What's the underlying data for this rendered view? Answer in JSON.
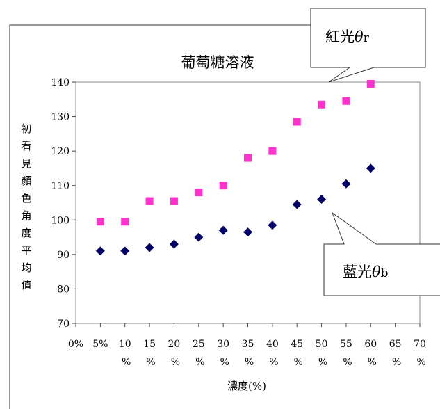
{
  "chart_data": {
    "type": "scatter",
    "title": "葡萄糖溶液",
    "xlabel": "濃度(%)",
    "ylabel": "初看見顏色角度平均值",
    "x_ticks": [
      "0%",
      "5%",
      "10 %",
      "15 %",
      "20 %",
      "25 %",
      "30 %",
      "35 %",
      "40 %",
      "45 %",
      "50 %",
      "55 %",
      "60 %",
      "65 %",
      "70 %"
    ],
    "x_values": [
      0,
      5,
      10,
      15,
      20,
      25,
      30,
      35,
      40,
      45,
      50,
      55,
      60,
      65,
      70
    ],
    "y_ticks": [
      70,
      80,
      90,
      100,
      110,
      120,
      130,
      140
    ],
    "ylim": [
      70,
      140
    ],
    "xlim": [
      0,
      70
    ],
    "grid": false,
    "series": [
      {
        "name": "紅光θr",
        "color": "#ff33cc",
        "marker": "square",
        "x": [
          5,
          10,
          15,
          20,
          25,
          30,
          35,
          40,
          45,
          50,
          55,
          60
        ],
        "values": [
          99.5,
          99.5,
          105.5,
          105.5,
          108,
          110,
          118,
          120,
          128.5,
          133.5,
          134.5,
          139.5
        ]
      },
      {
        "name": "藍光θb",
        "color": "#000066",
        "marker": "diamond",
        "x": [
          5,
          10,
          15,
          20,
          25,
          30,
          35,
          40,
          45,
          50,
          55,
          60
        ],
        "values": [
          91,
          91,
          92,
          93,
          95,
          97,
          96.5,
          98.5,
          104.5,
          106,
          110.5,
          115
        ]
      }
    ],
    "callouts": [
      {
        "series": 0,
        "label_prefix": "紅光",
        "theta": "θ",
        "label_suffix": "r"
      },
      {
        "series": 1,
        "label_prefix": "藍光",
        "theta": "θ",
        "label_suffix": "b"
      }
    ]
  }
}
